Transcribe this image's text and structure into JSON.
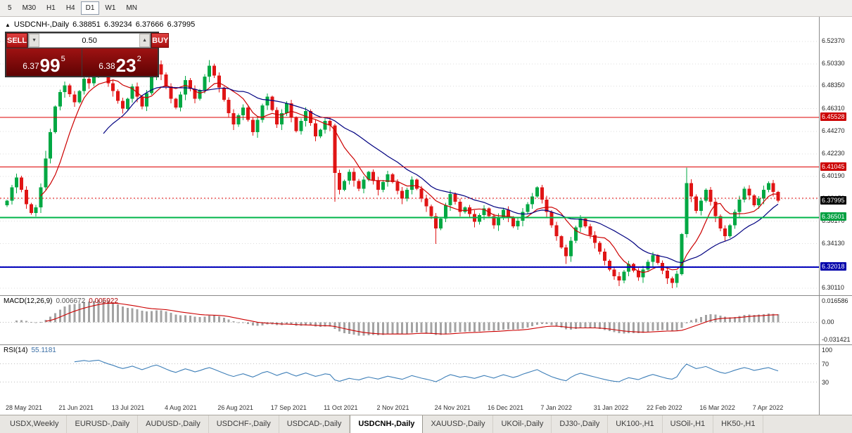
{
  "toolbar": {
    "timeframes": [
      "5",
      "M30",
      "H1",
      "H4",
      "D1",
      "W1",
      "MN"
    ],
    "active": "D1"
  },
  "chart_header": {
    "marker": "▲",
    "symbol": "USDCNH-,Daily",
    "open": "6.38851",
    "high": "6.39234",
    "low": "6.37666",
    "close": "6.37995"
  },
  "trade_panel": {
    "sell_label": "SELL",
    "buy_label": "BUY",
    "volume": "0.50",
    "spin_down": "▼",
    "spin_up": "▲",
    "sell_price_small": "6.37",
    "sell_price_big": "99",
    "sell_price_sup": "5",
    "buy_price_small": "6.38",
    "buy_price_big": "23",
    "buy_price_sup": "2"
  },
  "chart_data": {
    "type": "candlestick",
    "symbol": "USDCNH-,Daily",
    "timeframe": "Daily",
    "price_range": [
      6.2948,
      6.5326
    ],
    "first_open": 6.376,
    "closes": [
      6.38,
      6.392,
      6.401,
      6.39,
      6.377,
      6.369,
      6.374,
      6.392,
      6.418,
      6.442,
      6.465,
      6.478,
      6.484,
      6.476,
      6.469,
      6.479,
      6.49,
      6.486,
      6.495,
      6.503,
      6.494,
      6.486,
      6.479,
      6.47,
      6.463,
      6.472,
      6.483,
      6.474,
      6.465,
      6.477,
      6.492,
      6.503,
      6.494,
      6.483,
      6.472,
      6.464,
      6.476,
      6.489,
      6.481,
      6.472,
      6.48,
      6.492,
      6.502,
      6.493,
      6.482,
      6.471,
      6.459,
      6.449,
      6.457,
      6.464,
      6.453,
      6.442,
      6.453,
      6.466,
      6.474,
      6.462,
      6.449,
      6.459,
      6.468,
      6.455,
      6.443,
      6.452,
      6.461,
      6.45,
      6.438,
      6.444,
      6.452,
      6.448,
      6.405,
      6.39,
      6.398,
      6.406,
      6.398,
      6.391,
      6.399,
      6.406,
      6.398,
      6.39,
      6.397,
      6.404,
      6.397,
      6.389,
      6.382,
      6.39,
      6.399,
      6.391,
      6.382,
      6.375,
      6.366,
      6.355,
      6.364,
      6.376,
      6.386,
      6.379,
      6.37,
      6.374,
      6.368,
      6.361,
      6.367,
      6.373,
      6.366,
      6.358,
      6.365,
      6.372,
      6.365,
      6.357,
      6.362,
      6.37,
      6.377,
      6.384,
      6.392,
      6.381,
      6.37,
      6.358,
      6.348,
      6.338,
      6.33,
      6.344,
      6.356,
      6.364,
      6.357,
      6.349,
      6.342,
      6.334,
      6.326,
      6.318,
      6.312,
      6.308,
      6.316,
      6.323,
      6.317,
      6.311,
      6.318,
      6.325,
      6.331,
      6.324,
      6.317,
      6.31,
      6.306,
      6.314,
      6.35,
      6.396,
      6.384,
      6.371,
      6.38,
      6.39,
      6.379,
      6.366,
      6.355,
      6.348,
      6.358,
      6.37,
      6.381,
      6.391,
      6.385,
      6.376,
      6.382,
      6.39,
      6.396,
      6.388,
      6.38
    ],
    "wick_overrides": {
      "8": {
        "h": 6.425
      },
      "19": {
        "h": 6.509
      },
      "31": {
        "h": 6.512
      },
      "42": {
        "h": 6.507
      },
      "68": {
        "l": 6.379
      },
      "89": {
        "l": 6.341
      },
      "116": {
        "l": 6.323
      },
      "138": {
        "l": 6.301
      },
      "141": {
        "h": 6.41
      }
    },
    "ma_fast_period": 8,
    "ma_slow_period": 21,
    "ma_fast_color": "#cc0000",
    "ma_slow_color": "#000080",
    "up_color": "#00a843",
    "down_color": "#e01515",
    "hlines": [
      {
        "price": 6.45528,
        "color": "#dd0000",
        "width": 1,
        "label": "6.45528",
        "label_bg": "#cc0000"
      },
      {
        "price": 6.41045,
        "color": "#dd0000",
        "width": 1,
        "label": "6.41045",
        "label_bg": "#cc0000"
      },
      {
        "price": 6.36501,
        "color": "#00b44a",
        "width": 2,
        "label": "6.36501",
        "label_bg": "#00a040"
      },
      {
        "price": 6.32018,
        "color": "#0000bb",
        "width": 2,
        "label": "6.32018",
        "label_bg": "#0000aa"
      }
    ],
    "current_price": {
      "value": 6.37995,
      "label": "6.37995",
      "label_bg": "#000000"
    },
    "ask_line": {
      "value": 6.38232,
      "color": "#dd0000"
    },
    "y_ticks": [
      {
        "t": "6.52370",
        "v": 6.5237
      },
      {
        "t": "6.50330",
        "v": 6.5033
      },
      {
        "t": "6.48350",
        "v": 6.4835
      },
      {
        "t": "6.46310",
        "v": 6.4631
      },
      {
        "t": "6.44270",
        "v": 6.4427
      },
      {
        "t": "6.42230",
        "v": 6.4223
      },
      {
        "t": "6.40190",
        "v": 6.4019
      },
      {
        "t": "6.38150",
        "v": 6.3815
      },
      {
        "t": "6.36170",
        "v": 6.3617
      },
      {
        "t": "6.34130",
        "v": 6.3413
      },
      {
        "t": "6.32090",
        "v": 6.3209
      },
      {
        "t": "6.30110",
        "v": 6.3011
      }
    ],
    "x_labels": [
      {
        "t": "28 May 2021",
        "i": 0
      },
      {
        "t": "21 Jun 2021",
        "i": 11
      },
      {
        "t": "13 Jul 2021",
        "i": 22
      },
      {
        "t": "4 Aug 2021",
        "i": 33
      },
      {
        "t": "26 Aug 2021",
        "i": 44
      },
      {
        "t": "17 Sep 2021",
        "i": 55
      },
      {
        "t": "11 Oct 2021",
        "i": 66
      },
      {
        "t": "2 Nov 2021",
        "i": 77
      },
      {
        "t": "24 Nov 2021",
        "i": 89
      },
      {
        "t": "16 Dec 2021",
        "i": 100
      },
      {
        "t": "7 Jan 2022",
        "i": 111
      },
      {
        "t": "31 Jan 2022",
        "i": 122
      },
      {
        "t": "22 Feb 2022",
        "i": 133
      },
      {
        "t": "16 Mar 2022",
        "i": 144
      },
      {
        "t": "7 Apr 2022",
        "i": 155
      }
    ]
  },
  "macd": {
    "label": "MACD(12,26,9)",
    "value1": "0.006672",
    "value2": "0.005922",
    "fast": 12,
    "slow": 26,
    "signal": 9,
    "hist_color": "#a3a3a3",
    "signal_color": "#cc0000",
    "axis_top": "0.016586",
    "axis_zero": "0.00",
    "axis_bottom": "-0.031421"
  },
  "rsi": {
    "label": "RSI(14)",
    "value": "55.1181",
    "period": 14,
    "line_color": "#3e7fb8",
    "levels": [
      70,
      30
    ],
    "axis_labels": [
      "100",
      "70",
      "30"
    ]
  },
  "bottom_tabs": {
    "active": "USDCNH-,Daily",
    "tabs": [
      "USDX,Weekly",
      "EURUSD-,Daily",
      "AUDUSD-,Daily",
      "USDCHF-,Daily",
      "USDCAD-,Daily",
      "USDCNH-,Daily",
      "XAUUSD-,Daily",
      "UKOil-,Daily",
      "DJ30-,Daily",
      "UK100-,H1",
      "USOil-,H1",
      "HK50-,H1"
    ]
  }
}
